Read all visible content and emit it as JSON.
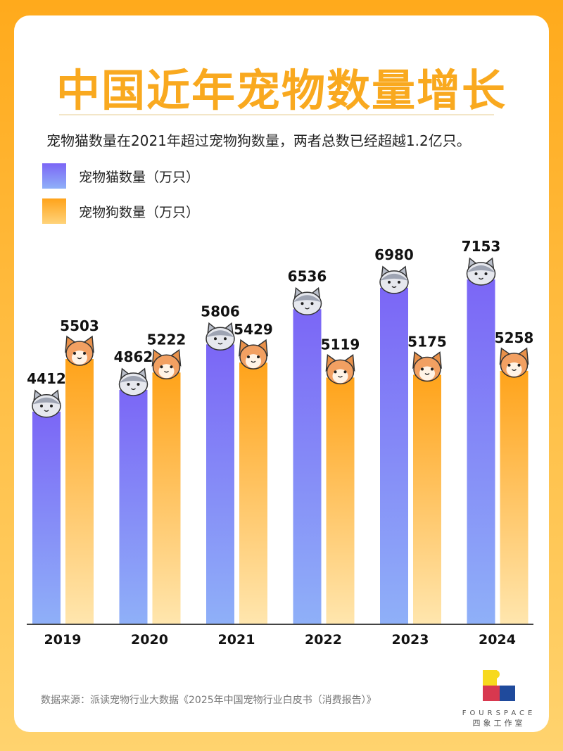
{
  "header": {
    "title": "中国近年宠物数量增长",
    "subtitle": "宠物猫数量在2021年超过宠物狗数量，两者总数已经超越1.2亿只。"
  },
  "colors": {
    "cat": "#7B66F6",
    "cat_bottom": "#8FB0F8",
    "dog": "#FFA31A",
    "dog_bottom": "#FFE6AE",
    "title": "#F9A91F"
  },
  "chart_data": {
    "type": "bar",
    "categories": [
      "2019",
      "2020",
      "2021",
      "2022",
      "2023",
      "2024"
    ],
    "series": [
      {
        "name": "宠物猫数量（万只）",
        "values": [
          4412,
          4862,
          5806,
          6536,
          6980,
          7153
        ],
        "icon": "cat-face-icon"
      },
      {
        "name": "宠物狗数量（万只）",
        "values": [
          5503,
          5222,
          5429,
          5119,
          5175,
          5258
        ],
        "icon": "dog-face-icon"
      }
    ],
    "ylim": [
      0,
      7800
    ],
    "grid": false,
    "legend": "top-left"
  },
  "footer": {
    "source": "数据来源：派读宠物行业大数据《2025年中国宠物行业白皮书（消费报告）》",
    "logo_en": "FOURSPACE",
    "logo_cn": "四象工作室"
  }
}
